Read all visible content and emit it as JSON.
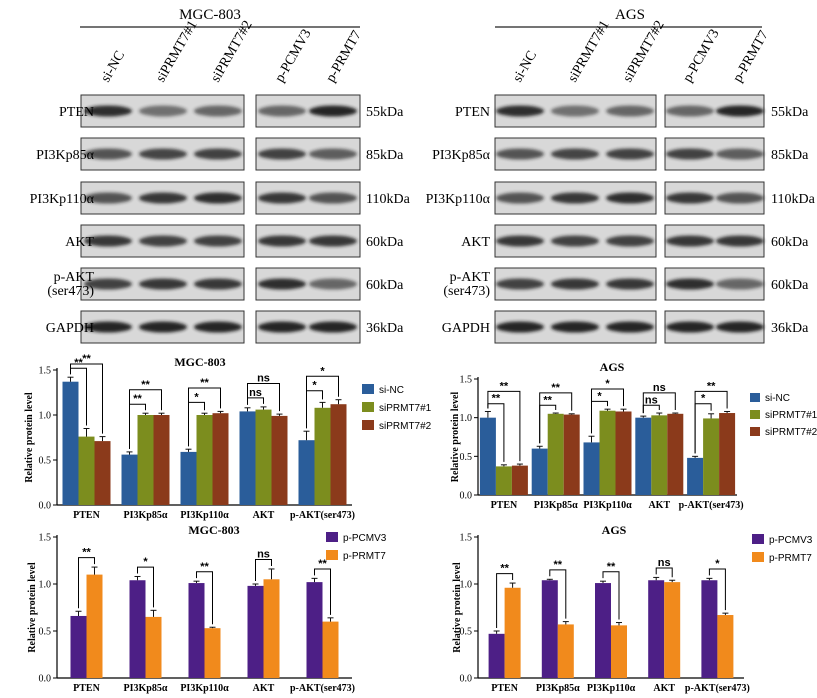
{
  "colors": {
    "siNC": "#2a5d9a",
    "siPRMT7_1": "#7c8d1e",
    "siPRMT7_2": "#8b3a1b",
    "pPCMV3": "#4d1f86",
    "pPRMT7": "#f18a1c"
  },
  "blots": [
    {
      "cell_line": "MGC-803",
      "lanes_left": [
        "si-NC",
        "siPRMT7#1",
        "siPRMT7#2"
      ],
      "lanes_right": [
        "p-PCMV3",
        "p-PRMT7"
      ],
      "rows": [
        {
          "protein": "PTEN",
          "size": "55kDa"
        },
        {
          "protein": "PI3Kp85α",
          "size": "85kDa"
        },
        {
          "protein": "PI3Kp110α",
          "size": "110kDa"
        },
        {
          "protein": "AKT",
          "size": "60kDa"
        },
        {
          "protein": "p-AKT",
          "protein2": "(ser473)",
          "size": "60kDa"
        },
        {
          "protein": "GAPDH",
          "size": "36kDa"
        }
      ]
    },
    {
      "cell_line": "AGS",
      "lanes_left": [
        "si-NC",
        "siPRMT7#1",
        "siPRMT7#2"
      ],
      "lanes_right": [
        "p-PCMV3",
        "p-PRMT7"
      ],
      "rows": [
        {
          "protein": "PTEN",
          "size": "55kDa"
        },
        {
          "protein": "PI3Kp85α",
          "size": "85kDa"
        },
        {
          "protein": "PI3Kp110α",
          "size": "110kDa"
        },
        {
          "protein": "AKT",
          "size": "60kDa"
        },
        {
          "protein": "p-AKT",
          "protein2": "(ser473)",
          "size": "60kDa"
        },
        {
          "protein": "GAPDH",
          "size": "36kDa"
        }
      ]
    }
  ],
  "chart_data": [
    {
      "type": "bar",
      "title": "MGC-803",
      "ylabel": "Relative protein level",
      "ylim": [
        0,
        1.5
      ],
      "yticks": [
        "0.0",
        "0.5",
        "1.0",
        "1.5"
      ],
      "categories": [
        "PTEN",
        "PI3Kp85α",
        "PI3Kp110α",
        "AKT",
        "p-AKT(ser473)"
      ],
      "series": [
        {
          "name": "si-NC",
          "color_key": "siNC",
          "values": [
            1.37,
            0.56,
            0.59,
            1.04,
            0.72
          ],
          "errors": [
            0.05,
            0.03,
            0.03,
            0.04,
            0.1
          ]
        },
        {
          "name": "siPRMT7#1",
          "color_key": "siPRMT7_1",
          "values": [
            0.76,
            1.0,
            1.0,
            1.06,
            1.08
          ],
          "errors": [
            0.09,
            0.02,
            0.02,
            0.03,
            0.06
          ]
        },
        {
          "name": "siPRMT7#2",
          "color_key": "siPRMT7_2",
          "values": [
            0.71,
            1.0,
            1.02,
            0.99,
            1.12
          ],
          "errors": [
            0.05,
            0.02,
            0.02,
            0.02,
            0.05
          ]
        }
      ],
      "significance": [
        {
          "group": 0,
          "comparisons": [
            {
              "from": 0,
              "to": 1,
              "label": "**"
            },
            {
              "from": 0,
              "to": 2,
              "label": "**"
            }
          ]
        },
        {
          "group": 1,
          "comparisons": [
            {
              "from": 0,
              "to": 1,
              "label": "**"
            },
            {
              "from": 0,
              "to": 2,
              "label": "**"
            }
          ]
        },
        {
          "group": 2,
          "comparisons": [
            {
              "from": 0,
              "to": 1,
              "label": "*"
            },
            {
              "from": 0,
              "to": 2,
              "label": "**"
            }
          ]
        },
        {
          "group": 3,
          "comparisons": [
            {
              "from": 0,
              "to": 1,
              "label": "ns"
            },
            {
              "from": 0,
              "to": 2,
              "label": "ns"
            }
          ]
        },
        {
          "group": 4,
          "comparisons": [
            {
              "from": 0,
              "to": 1,
              "label": "*"
            },
            {
              "from": 0,
              "to": 2,
              "label": "*"
            }
          ]
        }
      ]
    },
    {
      "type": "bar",
      "title": "AGS",
      "ylabel": "Relative protein level",
      "ylim": [
        0,
        1.5
      ],
      "yticks": [
        "0.0",
        "0.5",
        "1.0",
        "1.5"
      ],
      "categories": [
        "PTEN",
        "PI3Kp85α",
        "PI3Kp110α",
        "AKT",
        "p-AKT(ser473)"
      ],
      "series": [
        {
          "name": "si-NC",
          "color_key": "siNC",
          "values": [
            1.0,
            0.6,
            0.68,
            1.0,
            0.48
          ],
          "errors": [
            0.08,
            0.03,
            0.08,
            0.02,
            0.02
          ]
        },
        {
          "name": "siPRMT7#1",
          "color_key": "siPRMT7_1",
          "values": [
            0.37,
            1.05,
            1.09,
            1.03,
            0.99
          ],
          "errors": [
            0.02,
            0.01,
            0.02,
            0.03,
            0.06
          ]
        },
        {
          "name": "siPRMT7#2",
          "color_key": "siPRMT7_2",
          "values": [
            0.38,
            1.04,
            1.08,
            1.05,
            1.06
          ],
          "errors": [
            0.02,
            0.01,
            0.03,
            0.01,
            0.02
          ]
        }
      ],
      "significance": [
        {
          "group": 0,
          "comparisons": [
            {
              "from": 0,
              "to": 1,
              "label": "**"
            },
            {
              "from": 0,
              "to": 2,
              "label": "**"
            }
          ]
        },
        {
          "group": 1,
          "comparisons": [
            {
              "from": 0,
              "to": 1,
              "label": "**"
            },
            {
              "from": 0,
              "to": 2,
              "label": "**"
            }
          ]
        },
        {
          "group": 2,
          "comparisons": [
            {
              "from": 0,
              "to": 1,
              "label": "*"
            },
            {
              "from": 0,
              "to": 2,
              "label": "*"
            }
          ]
        },
        {
          "group": 3,
          "comparisons": [
            {
              "from": 0,
              "to": 1,
              "label": "ns"
            },
            {
              "from": 0,
              "to": 2,
              "label": "ns"
            }
          ]
        },
        {
          "group": 4,
          "comparisons": [
            {
              "from": 0,
              "to": 1,
              "label": "*"
            },
            {
              "from": 0,
              "to": 2,
              "label": "**"
            }
          ]
        }
      ]
    },
    {
      "type": "bar",
      "title": "MGC-803",
      "ylabel": "Relative protein level",
      "ylim": [
        0,
        1.5
      ],
      "yticks": [
        "0.0",
        "0.5",
        "1.0",
        "1.5"
      ],
      "categories": [
        "PTEN",
        "PI3Kp85α",
        "PI3Kp110α",
        "AKT",
        "p-AKT(ser473)"
      ],
      "series": [
        {
          "name": "p-PCMV3",
          "color_key": "pPCMV3",
          "values": [
            0.66,
            1.04,
            1.01,
            0.98,
            1.02
          ],
          "errors": [
            0.05,
            0.04,
            0.02,
            0.02,
            0.04
          ]
        },
        {
          "name": "p-PRMT7",
          "color_key": "pPRMT7",
          "values": [
            1.1,
            0.65,
            0.53,
            1.05,
            0.6
          ],
          "errors": [
            0.08,
            0.07,
            0.01,
            0.11,
            0.04
          ]
        }
      ],
      "significance": [
        {
          "group": 0,
          "comparisons": [
            {
              "from": 0,
              "to": 1,
              "label": "**"
            }
          ]
        },
        {
          "group": 1,
          "comparisons": [
            {
              "from": 0,
              "to": 1,
              "label": "*"
            }
          ]
        },
        {
          "group": 2,
          "comparisons": [
            {
              "from": 0,
              "to": 1,
              "label": "**"
            }
          ]
        },
        {
          "group": 3,
          "comparisons": [
            {
              "from": 0,
              "to": 1,
              "label": "ns"
            }
          ]
        },
        {
          "group": 4,
          "comparisons": [
            {
              "from": 0,
              "to": 1,
              "label": "**"
            }
          ]
        }
      ]
    },
    {
      "type": "bar",
      "title": "AGS",
      "ylabel": "Relative protein level",
      "ylim": [
        0,
        1.5
      ],
      "yticks": [
        "0.0",
        "0.5",
        "1.0",
        "1.5"
      ],
      "categories": [
        "PTEN",
        "PI3Kp85α",
        "PI3Kp110α",
        "AKT",
        "p-AKT(ser473)"
      ],
      "series": [
        {
          "name": "p-PCMV3",
          "color_key": "pPCMV3",
          "values": [
            0.47,
            1.04,
            1.01,
            1.04,
            1.04
          ],
          "errors": [
            0.03,
            0.01,
            0.02,
            0.03,
            0.02
          ]
        },
        {
          "name": "p-PRMT7",
          "color_key": "pPRMT7",
          "values": [
            0.96,
            0.57,
            0.56,
            1.02,
            0.67
          ],
          "errors": [
            0.05,
            0.03,
            0.03,
            0.02,
            0.02
          ]
        }
      ],
      "significance": [
        {
          "group": 0,
          "comparisons": [
            {
              "from": 0,
              "to": 1,
              "label": "**"
            }
          ]
        },
        {
          "group": 1,
          "comparisons": [
            {
              "from": 0,
              "to": 1,
              "label": "**"
            }
          ]
        },
        {
          "group": 2,
          "comparisons": [
            {
              "from": 0,
              "to": 1,
              "label": "**"
            }
          ]
        },
        {
          "group": 3,
          "comparisons": [
            {
              "from": 0,
              "to": 1,
              "label": "ns"
            }
          ]
        },
        {
          "group": 4,
          "comparisons": [
            {
              "from": 0,
              "to": 1,
              "label": "*"
            }
          ]
        }
      ]
    }
  ]
}
